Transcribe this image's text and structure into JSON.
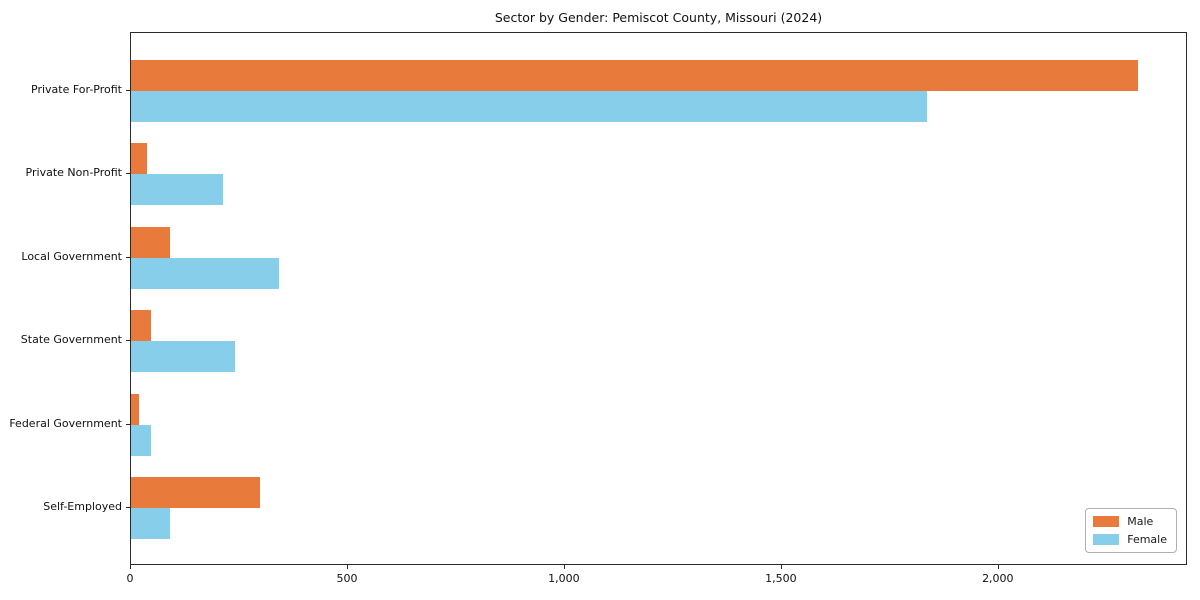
{
  "chart_data": {
    "type": "bar",
    "orientation": "horizontal",
    "title": "Sector by Gender: Pemiscot County, Missouri (2024)",
    "categories": [
      "Private For-Profit",
      "Private Non-Profit",
      "Local Government",
      "State Government",
      "Federal Government",
      "Self-Employed"
    ],
    "series": [
      {
        "name": "Male",
        "color": "#e87b3c",
        "values": [
          2320,
          37,
          89,
          45,
          19,
          298
        ]
      },
      {
        "name": "Female",
        "color": "#87ceeb",
        "values": [
          1835,
          213,
          340,
          239,
          46,
          91
        ]
      }
    ],
    "xlabel": "",
    "ylabel": "",
    "xlim": [
      0,
      2436
    ],
    "xticks": [
      0,
      500,
      1000,
      1500,
      2000
    ],
    "xtick_labels": [
      "0",
      "500",
      "1,000",
      "1,500",
      "2,000"
    ],
    "grid": false,
    "legend_position": "lower right"
  }
}
